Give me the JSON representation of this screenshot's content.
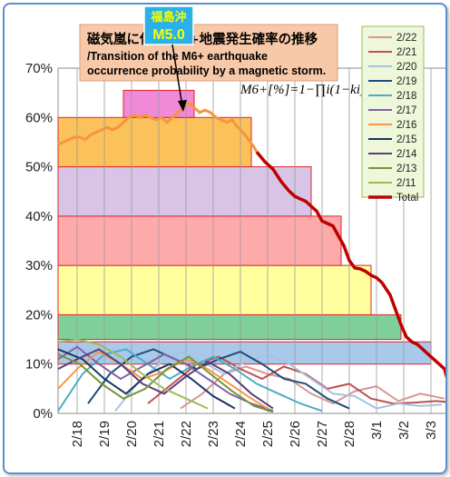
{
  "colors": {
    "total": "#c00000",
    "pre": "#f7943e",
    "ann_bg": "#f8c9a8",
    "ann_border": "#d9a079",
    "loc_bg": "#2bb0e8",
    "loc_text": "#f5ff00",
    "legend_bg": "#eef7da",
    "legend_border": "#9bbb59"
  },
  "annotation": {
    "location": "福島沖",
    "magnitude": "M5.0",
    "title_jp": "磁気嵐に伴うM6+地震発生確率の推移",
    "title_en_1": "/Transition of the M6+ earthquake",
    "title_en_2": "occurrence probability by a magnetic storm.",
    "formula": "M6+[%]=1−∏i(1−ki)"
  },
  "chart_data": {
    "type": "line",
    "title": "磁気嵐に伴うM6+地震発生確率の推移 /Transition of the M6+ earthquake occurrence probability by a magnetic storm.",
    "x_tick_labels": [
      "2/18",
      "2/19",
      "2/20",
      "2/21",
      "2/22",
      "2/23",
      "2/24",
      "2/25",
      "2/26",
      "2/27",
      "2/28",
      "3/1",
      "3/2",
      "3/3"
    ],
    "y_tick_labels": [
      "0%",
      "10%",
      "20%",
      "30%",
      "40%",
      "50%",
      "60%",
      "70%"
    ],
    "xlim": [
      17.3,
      31.6
    ],
    "ylim": [
      0,
      70
    ],
    "grid": "vertical",
    "legend_position": "right",
    "bands": [
      {
        "x0": 17.3,
        "x1": 31.0,
        "y0": 10,
        "y1": 14.5,
        "color": "#a9c9ea"
      },
      {
        "x0": 17.3,
        "x1": 29.9,
        "y0": 15,
        "y1": 20,
        "color": "#7fcf9b"
      },
      {
        "x0": 17.3,
        "x1": 28.8,
        "y0": 20,
        "y1": 30,
        "color": "#ffff9e"
      },
      {
        "x0": 17.3,
        "x1": 27.7,
        "y0": 30,
        "y1": 40,
        "color": "#ffaaaa"
      },
      {
        "x0": 17.3,
        "x1": 26.6,
        "y0": 40,
        "y1": 50,
        "color": "#d7c4e6"
      },
      {
        "x0": 17.3,
        "x1": 24.4,
        "y0": 50,
        "y1": 60,
        "color": "#fbc15a"
      },
      {
        "x0": 19.7,
        "x1": 22.3,
        "y0": 60,
        "y1": 65.5,
        "color": "#f08ad6"
      }
    ],
    "series": [
      {
        "name": "2/22",
        "color": "#d99694",
        "points": [
          [
            21.8,
            1
          ],
          [
            22.6,
            4
          ],
          [
            23.4,
            8
          ],
          [
            24.2,
            9.5
          ],
          [
            25.0,
            8
          ],
          [
            25.8,
            7
          ],
          [
            26.6,
            4
          ],
          [
            27.4,
            2
          ],
          [
            28.2,
            4.5
          ],
          [
            29.0,
            5.5
          ],
          [
            29.8,
            2.5
          ],
          [
            30.6,
            4
          ],
          [
            31.5,
            3
          ]
        ]
      },
      {
        "name": "2/21",
        "color": "#c0504d",
        "points": [
          [
            20.6,
            2
          ],
          [
            21.5,
            6
          ],
          [
            22.4,
            10
          ],
          [
            23.2,
            11.5
          ],
          [
            24.0,
            9
          ],
          [
            24.8,
            7
          ],
          [
            25.6,
            9.5
          ],
          [
            26.4,
            8
          ],
          [
            27.2,
            5
          ],
          [
            28.0,
            6
          ],
          [
            28.8,
            3
          ],
          [
            29.6,
            2
          ],
          [
            30.4,
            2.2
          ],
          [
            31.2,
            2.5
          ],
          [
            31.6,
            2.3
          ]
        ]
      },
      {
        "name": "2/20",
        "color": "#a5c3e2",
        "points": [
          [
            19.4,
            0.5
          ],
          [
            20.2,
            6
          ],
          [
            21.0,
            10
          ],
          [
            21.8,
            12.5
          ],
          [
            22.6,
            10.5
          ],
          [
            23.4,
            8
          ],
          [
            24.2,
            10.5
          ],
          [
            25.0,
            12
          ],
          [
            25.8,
            10
          ],
          [
            26.6,
            7
          ],
          [
            27.4,
            4
          ],
          [
            28.2,
            3.5
          ],
          [
            29.0,
            1
          ],
          [
            29.8,
            2
          ],
          [
            30.6,
            1.5
          ],
          [
            31.4,
            1.8
          ]
        ]
      },
      {
        "name": "2/19",
        "color": "#1f4e79",
        "points": [
          [
            18.4,
            2
          ],
          [
            19.2,
            8
          ],
          [
            20.0,
            11.5
          ],
          [
            20.8,
            13
          ],
          [
            21.6,
            11
          ],
          [
            22.4,
            9
          ],
          [
            23.2,
            11
          ],
          [
            24.0,
            12.5
          ],
          [
            24.8,
            10
          ],
          [
            25.6,
            7
          ],
          [
            26.4,
            6
          ],
          [
            27.2,
            3
          ],
          [
            28.0,
            1
          ]
        ]
      },
      {
        "name": "2/18",
        "color": "#4bacc6",
        "points": [
          [
            17.3,
            0.5
          ],
          [
            18.2,
            8
          ],
          [
            19.0,
            12
          ],
          [
            19.8,
            13
          ],
          [
            20.6,
            10
          ],
          [
            21.4,
            7
          ],
          [
            22.2,
            9.5
          ],
          [
            23.0,
            11.5
          ],
          [
            23.8,
            9
          ],
          [
            24.6,
            6
          ],
          [
            25.4,
            4
          ],
          [
            26.2,
            2
          ],
          [
            27.0,
            0.5
          ]
        ]
      },
      {
        "name": "2/17",
        "color": "#8064a2",
        "points": [
          [
            17.3,
            11
          ],
          [
            18.0,
            13.5
          ],
          [
            18.8,
            10
          ],
          [
            19.6,
            7
          ],
          [
            20.4,
            9.5
          ],
          [
            21.2,
            12
          ],
          [
            22.0,
            10
          ],
          [
            22.8,
            7
          ],
          [
            23.6,
            4
          ],
          [
            24.4,
            2
          ],
          [
            25.2,
            0.5
          ]
        ]
      },
      {
        "name": "2/16",
        "color": "#f79646",
        "points": [
          [
            17.3,
            5
          ],
          [
            18.0,
            9
          ],
          [
            18.8,
            12.5
          ],
          [
            19.6,
            10
          ],
          [
            20.4,
            7
          ],
          [
            21.2,
            8.5
          ],
          [
            22.0,
            11
          ],
          [
            22.8,
            9
          ],
          [
            23.6,
            6
          ],
          [
            24.4,
            3
          ],
          [
            25.0,
            1
          ]
        ]
      },
      {
        "name": "2/15",
        "color": "#17375e",
        "points": [
          [
            17.3,
            13
          ],
          [
            18.2,
            11
          ],
          [
            19.0,
            7
          ],
          [
            19.8,
            4
          ],
          [
            20.6,
            8
          ],
          [
            21.4,
            10
          ],
          [
            22.2,
            7
          ],
          [
            23.0,
            3.5
          ],
          [
            23.8,
            1
          ]
        ]
      },
      {
        "name": "2/14",
        "color": "#5b3f7a",
        "points": [
          [
            17.3,
            9
          ],
          [
            18.0,
            11
          ],
          [
            18.8,
            13
          ],
          [
            19.6,
            10
          ],
          [
            20.4,
            6
          ],
          [
            21.2,
            4
          ],
          [
            22.0,
            7.5
          ],
          [
            22.8,
            10.5
          ],
          [
            23.6,
            8
          ],
          [
            24.4,
            4
          ],
          [
            25.2,
            1
          ]
        ]
      },
      {
        "name": "2/13",
        "color": "#77933c",
        "points": [
          [
            17.3,
            12
          ],
          [
            18.1,
            10
          ],
          [
            18.9,
            6
          ],
          [
            19.7,
            3
          ],
          [
            20.5,
            5
          ],
          [
            21.3,
            9
          ],
          [
            22.1,
            11.5
          ],
          [
            22.9,
            8
          ],
          [
            23.7,
            4.5
          ],
          [
            24.5,
            1.5
          ],
          [
            25.2,
            0.3
          ]
        ]
      },
      {
        "name": "2/11",
        "color": "#9bbb59",
        "points": [
          [
            17.3,
            14.5
          ],
          [
            18.0,
            15
          ],
          [
            18.8,
            14
          ],
          [
            19.6,
            11.5
          ],
          [
            20.4,
            8
          ],
          [
            21.2,
            5
          ],
          [
            22.0,
            3
          ],
          [
            22.8,
            1
          ]
        ]
      },
      {
        "name": "Total",
        "color": "#c00000",
        "points": [
          [
            24.6,
            53
          ],
          [
            24.9,
            51
          ],
          [
            25.2,
            49.5
          ],
          [
            25.5,
            47
          ],
          [
            25.8,
            45
          ],
          [
            26.0,
            44
          ],
          [
            26.2,
            43.5
          ],
          [
            26.4,
            43
          ],
          [
            26.6,
            42
          ],
          [
            26.8,
            41
          ],
          [
            27.0,
            39
          ],
          [
            27.2,
            38.5
          ],
          [
            27.4,
            38
          ],
          [
            27.6,
            36
          ],
          [
            27.8,
            34
          ],
          [
            28.0,
            31
          ],
          [
            28.2,
            29.5
          ],
          [
            28.4,
            29.3
          ],
          [
            28.6,
            28.8
          ],
          [
            28.8,
            28
          ],
          [
            29.0,
            27.5
          ],
          [
            29.2,
            26.5
          ],
          [
            29.5,
            24
          ],
          [
            29.7,
            21
          ],
          [
            29.9,
            18
          ],
          [
            30.1,
            15.5
          ],
          [
            30.3,
            14.5
          ],
          [
            30.5,
            14
          ],
          [
            30.7,
            13
          ],
          [
            30.9,
            12
          ],
          [
            31.1,
            11
          ],
          [
            31.3,
            10
          ],
          [
            31.5,
            9
          ],
          [
            31.6,
            7
          ]
        ]
      }
    ],
    "pre_line": {
      "color": "#f7943e",
      "points": [
        [
          17.3,
          54.5
        ],
        [
          17.5,
          55
        ],
        [
          17.7,
          55.5
        ],
        [
          17.9,
          56
        ],
        [
          18.1,
          56
        ],
        [
          18.3,
          55.5
        ],
        [
          18.5,
          56.5
        ],
        [
          18.7,
          57
        ],
        [
          18.9,
          57.5
        ],
        [
          19.1,
          58
        ],
        [
          19.3,
          57.5
        ],
        [
          19.5,
          58
        ],
        [
          19.7,
          59
        ],
        [
          19.9,
          60
        ],
        [
          20.1,
          60.5
        ],
        [
          20.3,
          60
        ],
        [
          20.5,
          60.5
        ],
        [
          20.7,
          60
        ],
        [
          20.9,
          59.5
        ],
        [
          21.1,
          60
        ],
        [
          21.3,
          59
        ],
        [
          21.5,
          60
        ],
        [
          21.7,
          61
        ],
        [
          21.9,
          62
        ],
        [
          22.1,
          63
        ],
        [
          22.3,
          62
        ],
        [
          22.5,
          61
        ],
        [
          22.7,
          61.5
        ],
        [
          22.9,
          61
        ],
        [
          23.1,
          60
        ],
        [
          23.3,
          59.5
        ],
        [
          23.5,
          59
        ],
        [
          23.7,
          59.5
        ],
        [
          23.9,
          58
        ],
        [
          24.1,
          57
        ],
        [
          24.3,
          55.5
        ],
        [
          24.5,
          54
        ],
        [
          24.6,
          53
        ]
      ]
    }
  }
}
